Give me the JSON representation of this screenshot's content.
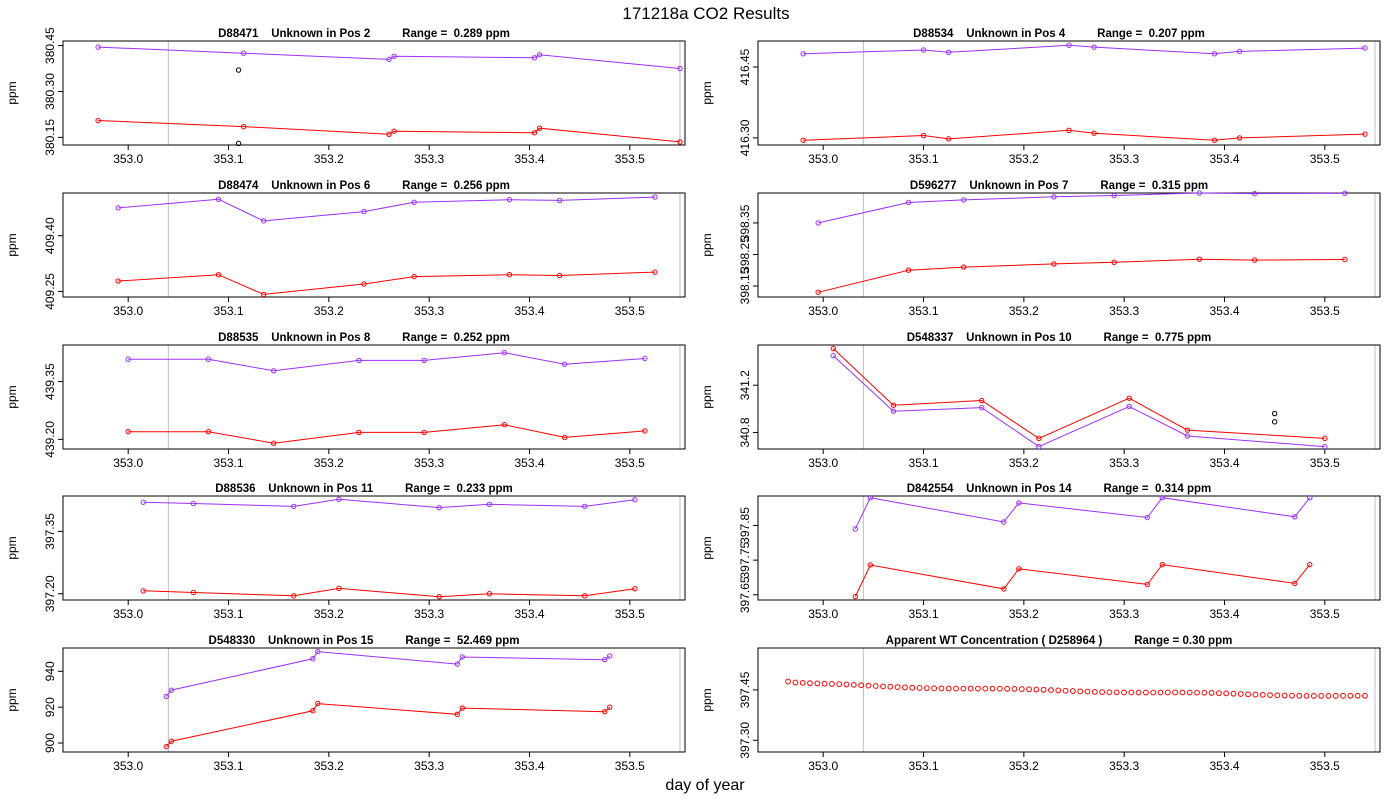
{
  "page_title": "171218a  CO2 Results",
  "x_axis_label": "day of year",
  "colors": {
    "series_a": "#9B30FF",
    "series_b": "#FF0000",
    "outlier": "#000000",
    "vline": "#BEBEBE"
  },
  "chart_data": [
    {
      "type": "line",
      "title": "D88471    Unknown in Pos 2          Range =  0.289 ppm",
      "ylabel": "ppm",
      "xlim": [
        352.935,
        353.555
      ],
      "ylim": [
        380.125,
        380.465
      ],
      "xticks": [
        353.0,
        353.1,
        353.2,
        353.3,
        353.4,
        353.5
      ],
      "xtick_labels": [
        "353.0",
        "353.1",
        "353.2",
        "353.3",
        "353.4",
        "353.5"
      ],
      "yticks": [
        380.15,
        380.3,
        380.45
      ],
      "ytick_labels": [
        "380.15",
        "380.30",
        "380.45"
      ],
      "vlines": [
        353.04,
        353.55
      ],
      "series": [
        {
          "name": "upper",
          "color": "#9B30FF",
          "x": [
            352.97,
            353.115,
            353.26,
            353.265,
            353.405,
            353.41,
            353.55
          ],
          "y": [
            380.445,
            380.425,
            380.405,
            380.415,
            380.41,
            380.42,
            380.375
          ]
        },
        {
          "name": "lower",
          "color": "#FF0000",
          "x": [
            352.97,
            353.115,
            353.26,
            353.265,
            353.405,
            353.41,
            353.55
          ],
          "y": [
            380.205,
            380.185,
            380.16,
            380.17,
            380.165,
            380.18,
            380.135
          ]
        }
      ],
      "outliers": {
        "x": [
          353.11,
          353.11
        ],
        "y": [
          380.37,
          380.13
        ]
      }
    },
    {
      "type": "line",
      "title": "D88534    Unknown in Pos 4          Range =  0.207 ppm",
      "ylabel": "ppm",
      "xlim": [
        352.935,
        353.555
      ],
      "ylim": [
        416.285,
        416.505
      ],
      "xticks": [
        353.0,
        353.1,
        353.2,
        353.3,
        353.4,
        353.5
      ],
      "xtick_labels": [
        "353.0",
        "353.1",
        "353.2",
        "353.3",
        "353.4",
        "353.5"
      ],
      "yticks": [
        416.3,
        416.45
      ],
      "ytick_labels": [
        "416.30",
        "416.45"
      ],
      "vlines": [
        353.04,
        353.55
      ],
      "series": [
        {
          "name": "upper",
          "color": "#9B30FF",
          "x": [
            352.98,
            353.1,
            353.125,
            353.245,
            353.27,
            353.39,
            353.415,
            353.54
          ],
          "y": [
            416.478,
            416.486,
            416.481,
            416.496,
            416.492,
            416.478,
            416.483,
            416.49
          ]
        },
        {
          "name": "lower",
          "color": "#FF0000",
          "x": [
            352.98,
            353.1,
            353.125,
            353.245,
            353.27,
            353.39,
            353.415,
            353.54
          ],
          "y": [
            416.295,
            416.305,
            416.298,
            416.316,
            416.31,
            416.295,
            416.3,
            416.308
          ]
        }
      ]
    },
    {
      "type": "line",
      "title": "D88474    Unknown in Pos 6          Range =  0.256 ppm",
      "ylabel": "ppm",
      "xlim": [
        352.935,
        353.555
      ],
      "ylim": [
        409.235,
        409.515
      ],
      "xticks": [
        353.0,
        353.1,
        353.2,
        353.3,
        353.4,
        353.5
      ],
      "xtick_labels": [
        "353.0",
        "353.1",
        "353.2",
        "353.3",
        "353.4",
        "353.5"
      ],
      "yticks": [
        409.25,
        409.4
      ],
      "ytick_labels": [
        "409.25",
        "409.40"
      ],
      "vlines": [
        353.04,
        353.55
      ],
      "series": [
        {
          "name": "upper",
          "color": "#9B30FF",
          "x": [
            352.99,
            353.09,
            353.135,
            353.235,
            353.285,
            353.38,
            353.43,
            353.525
          ],
          "y": [
            409.475,
            409.498,
            409.44,
            409.465,
            409.49,
            409.497,
            409.495,
            409.504
          ]
        },
        {
          "name": "lower",
          "color": "#FF0000",
          "x": [
            352.99,
            353.09,
            353.135,
            353.235,
            353.285,
            353.38,
            353.43,
            353.525
          ],
          "y": [
            409.278,
            409.295,
            409.242,
            409.27,
            409.29,
            409.295,
            409.293,
            409.302
          ]
        }
      ]
    },
    {
      "type": "line",
      "title": "D596277    Unknown in Pos 7          Range =  0.315 ppm",
      "ylabel": "ppm",
      "xlim": [
        352.935,
        353.555
      ],
      "ylim": [
        398.115,
        398.445
      ],
      "xticks": [
        353.0,
        353.1,
        353.2,
        353.3,
        353.4,
        353.5
      ],
      "xtick_labels": [
        "353.0",
        "353.1",
        "353.2",
        "353.3",
        "353.4",
        "353.5"
      ],
      "yticks": [
        398.15,
        398.25,
        398.35
      ],
      "ytick_labels": [
        "398.15",
        "398.25",
        "398.35"
      ],
      "vlines": [
        353.04,
        353.55
      ],
      "series": [
        {
          "name": "upper",
          "color": "#9B30FF",
          "x": [
            352.995,
            353.085,
            353.14,
            353.23,
            353.29,
            353.375,
            353.43,
            353.52
          ],
          "y": [
            398.35,
            398.415,
            398.423,
            398.433,
            398.437,
            398.445,
            398.443,
            398.444
          ]
        },
        {
          "name": "lower",
          "color": "#FF0000",
          "x": [
            352.995,
            353.085,
            353.14,
            353.23,
            353.29,
            353.375,
            353.43,
            353.52
          ],
          "y": [
            398.13,
            398.2,
            398.21,
            398.22,
            398.225,
            398.235,
            398.232,
            398.234
          ]
        }
      ]
    },
    {
      "type": "line",
      "title": "D88535    Unknown in Pos 8          Range =  0.252 ppm",
      "ylabel": "ppm",
      "xlim": [
        352.935,
        353.555
      ],
      "ylim": [
        439.175,
        439.445
      ],
      "xticks": [
        353.0,
        353.1,
        353.2,
        353.3,
        353.4,
        353.5
      ],
      "xtick_labels": [
        "353.0",
        "353.1",
        "353.2",
        "353.3",
        "353.4",
        "353.5"
      ],
      "yticks": [
        439.2,
        439.35
      ],
      "ytick_labels": [
        "439.20",
        "439.35"
      ],
      "vlines": [
        353.04,
        353.55
      ],
      "series": [
        {
          "name": "upper",
          "color": "#9B30FF",
          "x": [
            353.0,
            353.08,
            353.145,
            353.23,
            353.295,
            353.375,
            353.435,
            353.515
          ],
          "y": [
            439.408,
            439.408,
            439.378,
            439.405,
            439.405,
            439.425,
            439.395,
            439.41
          ]
        },
        {
          "name": "lower",
          "color": "#FF0000",
          "x": [
            353.0,
            353.08,
            353.145,
            353.23,
            353.295,
            353.375,
            353.435,
            353.515
          ],
          "y": [
            439.22,
            439.22,
            439.19,
            439.218,
            439.218,
            439.238,
            439.205,
            439.222
          ]
        }
      ]
    },
    {
      "type": "line",
      "title": "D548337    Unknown in Pos 10          Range =  0.775 ppm",
      "ylabel": "ppm",
      "xlim": [
        352.935,
        353.555
      ],
      "ylim": [
        340.66,
        341.54
      ],
      "xticks": [
        353.0,
        353.1,
        353.2,
        353.3,
        353.4,
        353.5
      ],
      "xtick_labels": [
        "353.0",
        "353.1",
        "353.2",
        "353.3",
        "353.4",
        "353.5"
      ],
      "yticks": [
        340.8,
        341.2
      ],
      "ytick_labels": [
        "340.8",
        "341.2"
      ],
      "vlines": [
        353.04,
        353.55
      ],
      "series": [
        {
          "name": "upper",
          "color": "#9B30FF",
          "x": [
            353.01,
            353.07,
            353.158,
            353.215,
            353.305,
            353.363,
            353.5
          ],
          "y": [
            341.45,
            340.98,
            341.01,
            340.68,
            341.02,
            340.77,
            340.68
          ]
        },
        {
          "name": "lower",
          "color": "#FF0000",
          "x": [
            353.01,
            353.07,
            353.158,
            353.215,
            353.305,
            353.363,
            353.5
          ],
          "y": [
            341.51,
            341.03,
            341.07,
            340.75,
            341.09,
            340.82,
            340.75
          ]
        }
      ],
      "outliers": {
        "x": [
          353.45,
          353.45
        ],
        "y": [
          340.96,
          340.89
        ]
      }
    },
    {
      "type": "line",
      "title": "D88536    Unknown in Pos 11          Range =  0.233 ppm",
      "ylabel": "ppm",
      "xlim": [
        352.935,
        353.555
      ],
      "ylim": [
        397.185,
        397.435
      ],
      "xticks": [
        353.0,
        353.1,
        353.2,
        353.3,
        353.4,
        353.5
      ],
      "xtick_labels": [
        "353.0",
        "353.1",
        "353.2",
        "353.3",
        "353.4",
        "353.5"
      ],
      "yticks": [
        397.2,
        397.35
      ],
      "ytick_labels": [
        "397.20",
        "397.35"
      ],
      "vlines": [
        353.04,
        353.55
      ],
      "series": [
        {
          "name": "upper",
          "color": "#9B30FF",
          "x": [
            353.015,
            353.065,
            353.165,
            353.21,
            353.31,
            353.36,
            353.455,
            353.505
          ],
          "y": [
            397.42,
            397.417,
            397.41,
            397.427,
            397.407,
            397.415,
            397.41,
            397.426
          ]
        },
        {
          "name": "lower",
          "color": "#FF0000",
          "x": [
            353.015,
            353.065,
            353.165,
            353.21,
            353.31,
            353.36,
            353.455,
            353.505
          ],
          "y": [
            397.207,
            397.203,
            397.195,
            397.213,
            397.193,
            397.2,
            397.195,
            397.212
          ]
        }
      ]
    },
    {
      "type": "line",
      "title": "D842554    Unknown in Pos 14          Range =  0.314 ppm",
      "ylabel": "ppm",
      "xlim": [
        352.935,
        353.555
      ],
      "ylim": [
        397.635,
        397.935
      ],
      "xticks": [
        353.0,
        353.1,
        353.2,
        353.3,
        353.4,
        353.5
      ],
      "xtick_labels": [
        "353.0",
        "353.1",
        "353.2",
        "353.3",
        "353.4",
        "353.5"
      ],
      "yticks": [
        397.65,
        397.75,
        397.85
      ],
      "ytick_labels": [
        "397.65",
        "397.75",
        "397.85"
      ],
      "vlines": [
        353.04,
        353.55
      ],
      "series": [
        {
          "name": "upper",
          "color": "#9B30FF",
          "x": [
            353.032,
            353.047,
            353.18,
            353.195,
            353.323,
            353.338,
            353.47,
            353.485
          ],
          "y": [
            397.84,
            397.93,
            397.86,
            397.915,
            397.873,
            397.93,
            397.875,
            397.93
          ]
        },
        {
          "name": "lower",
          "color": "#FF0000",
          "x": [
            353.032,
            353.047,
            353.18,
            353.195,
            353.323,
            353.338,
            353.47,
            353.485
          ],
          "y": [
            397.645,
            397.736,
            397.667,
            397.725,
            397.68,
            397.737,
            397.683,
            397.737
          ]
        }
      ]
    },
    {
      "type": "line",
      "title": "D548330    Unknown in Pos 15          Range =  52.469 ppm",
      "ylabel": "ppm",
      "xlim": [
        352.935,
        353.555
      ],
      "ylim": [
        895,
        953
      ],
      "xticks": [
        353.0,
        353.1,
        353.2,
        353.3,
        353.4,
        353.5
      ],
      "xtick_labels": [
        "353.0",
        "353.1",
        "353.2",
        "353.3",
        "353.4",
        "353.5"
      ],
      "yticks": [
        900,
        920,
        940
      ],
      "ytick_labels": [
        "900",
        "920",
        "940"
      ],
      "vlines": [
        353.04,
        353.55
      ],
      "series": [
        {
          "name": "upper",
          "color": "#9B30FF",
          "x": [
            353.038,
            353.043,
            353.184,
            353.189,
            353.328,
            353.333,
            353.475,
            353.48
          ],
          "y": [
            926,
            929.5,
            947,
            951,
            944,
            948,
            946.5,
            948.5
          ]
        },
        {
          "name": "lower",
          "color": "#FF0000",
          "x": [
            353.038,
            353.043,
            353.184,
            353.189,
            353.328,
            353.333,
            353.475,
            353.48
          ],
          "y": [
            898,
            901,
            918,
            922,
            916,
            919.5,
            917.5,
            920
          ]
        }
      ]
    },
    {
      "type": "scatter",
      "title": "Apparent WT Concentration ( D258964 )          Range = 0.30 ppm",
      "ylabel": "ppm",
      "xlim": [
        352.935,
        353.555
      ],
      "ylim": [
        397.265,
        397.575
      ],
      "xticks": [
        353.0,
        353.1,
        353.2,
        353.3,
        353.4,
        353.5
      ],
      "xtick_labels": [
        "353.0",
        "353.1",
        "353.2",
        "353.3",
        "353.4",
        "353.5"
      ],
      "yticks": [
        397.3,
        397.45
      ],
      "ytick_labels": [
        "397.30",
        "397.45"
      ],
      "vlines": [
        353.04,
        353.55
      ],
      "scatter": {
        "color": "#FF0000",
        "x_start": 352.965,
        "x_end": 353.54,
        "n": 80,
        "y_start": 397.475,
        "y_end": 397.431
      },
      "series": []
    }
  ]
}
